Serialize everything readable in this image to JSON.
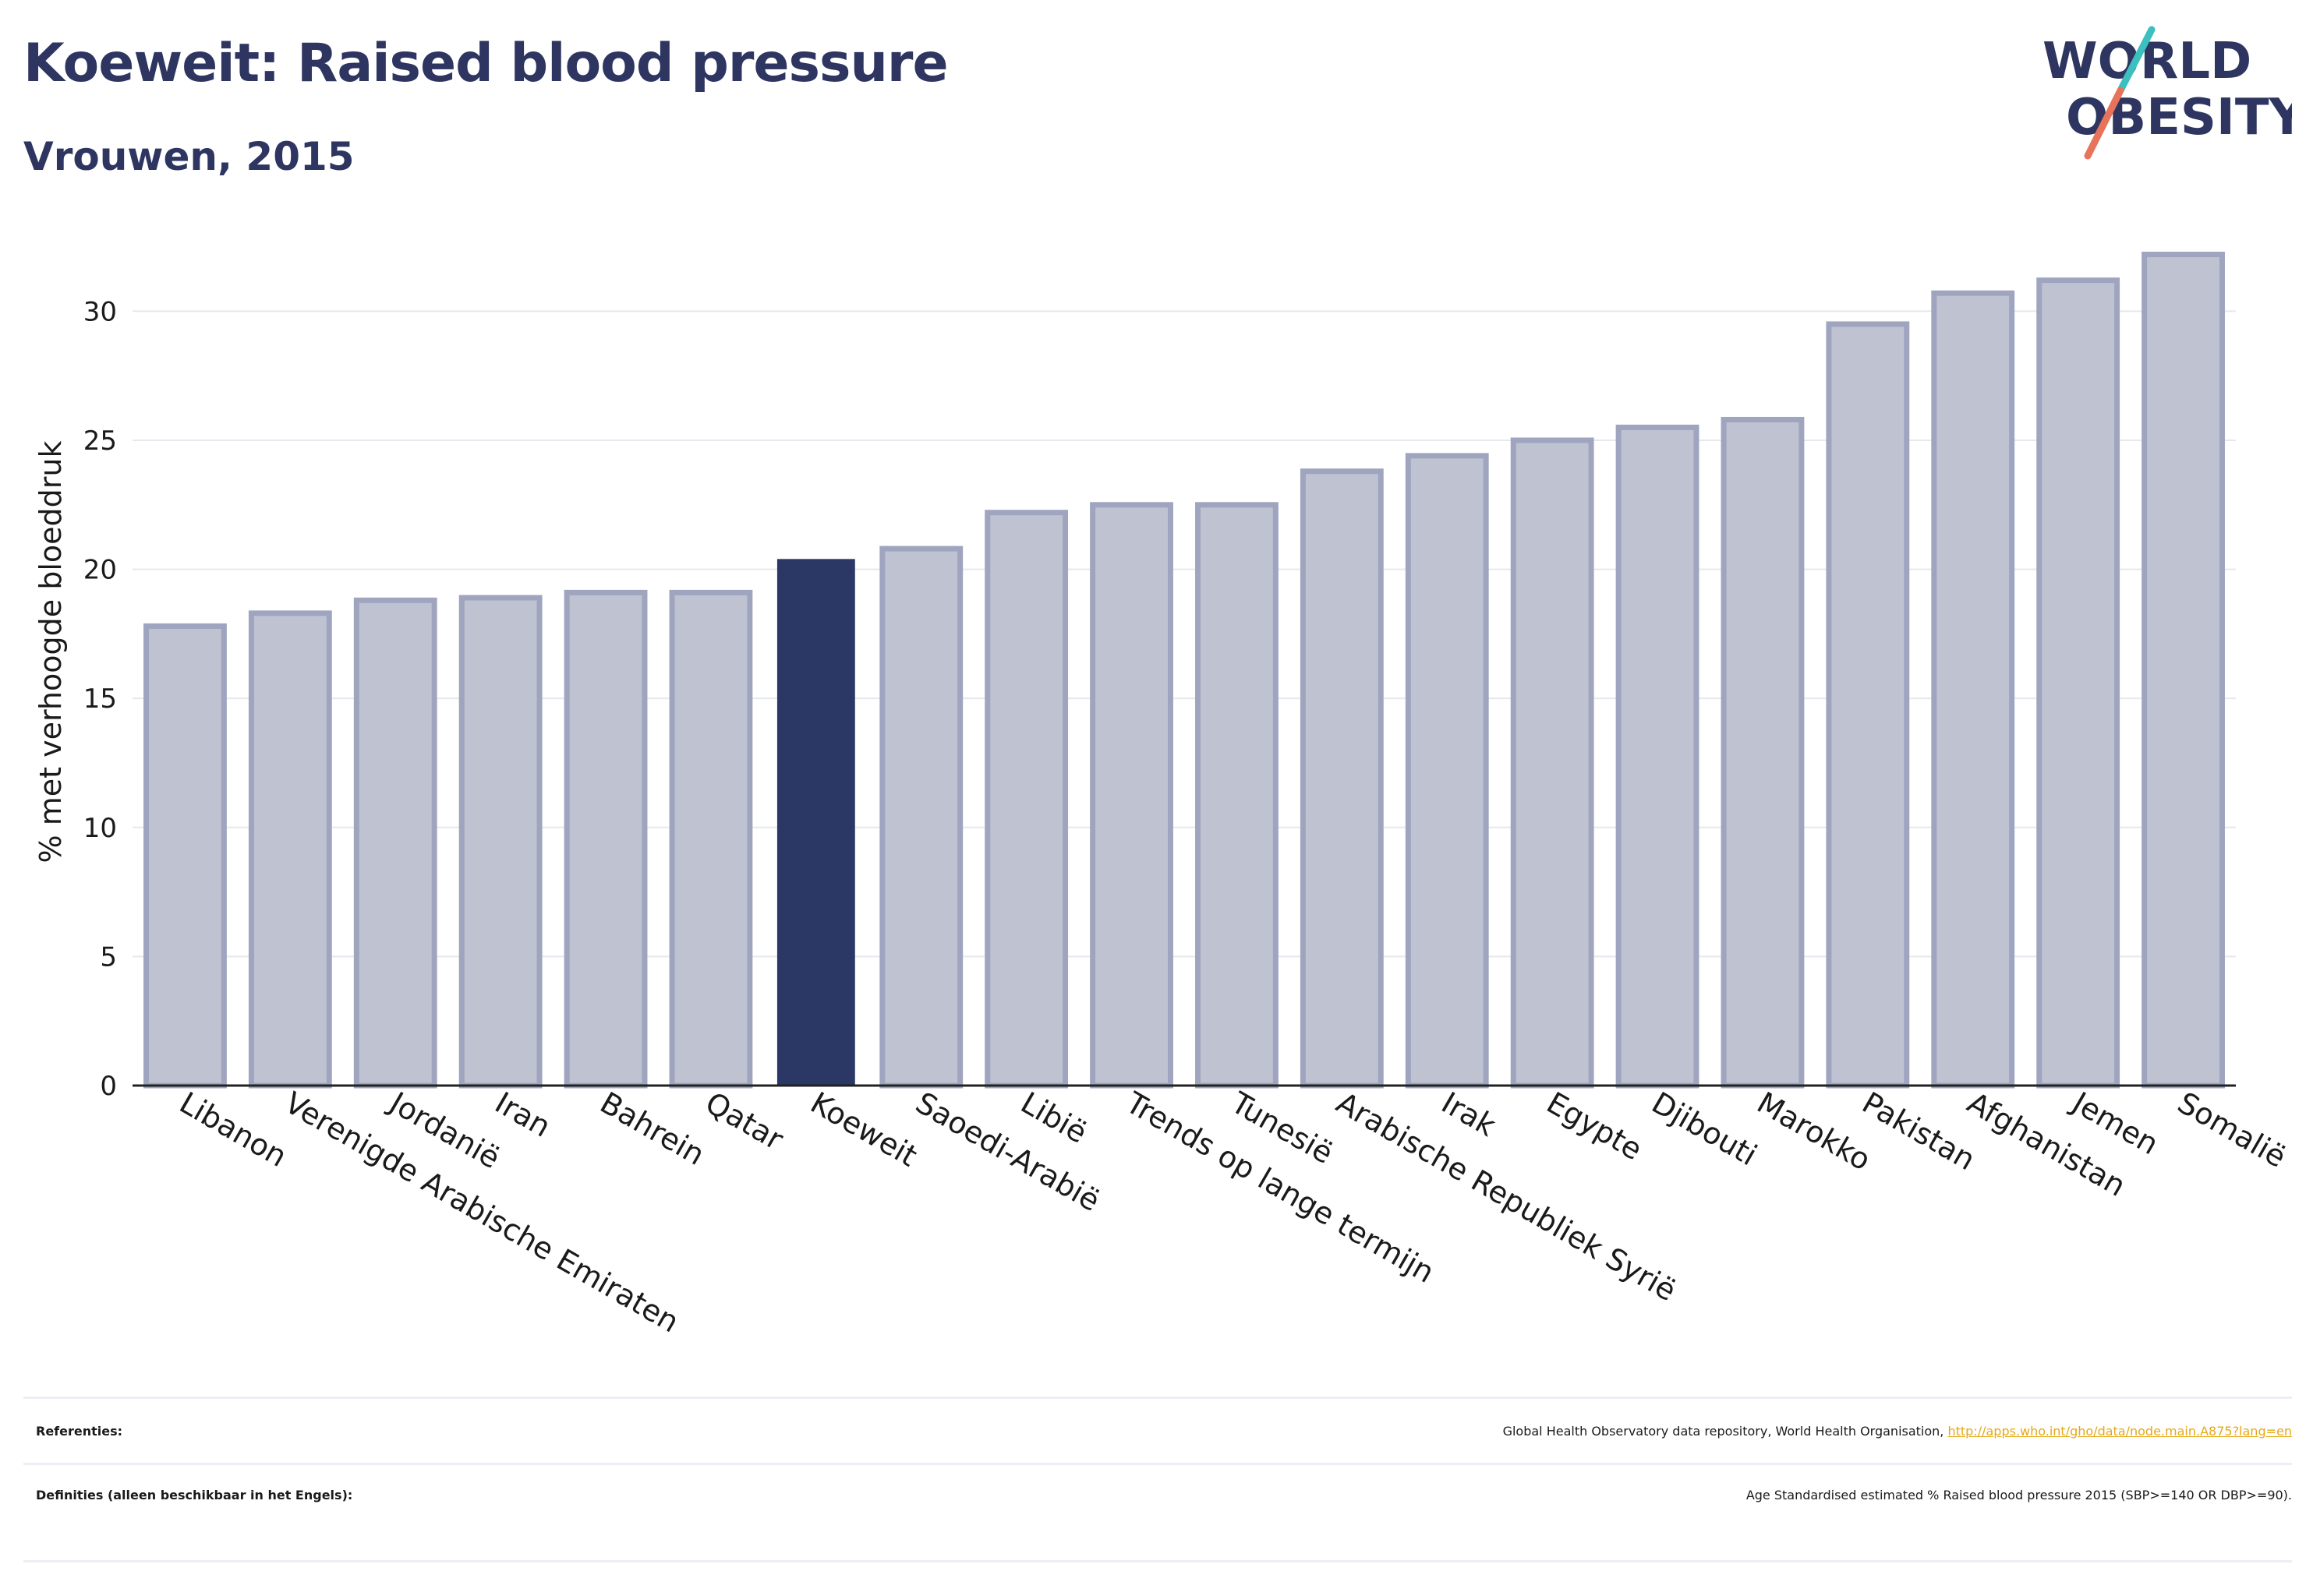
{
  "header": {
    "title": "Koeweit: Raised blood pressure",
    "subtitle": "Vrouwen, 2015"
  },
  "logo": {
    "line1": "WORLD",
    "line2": "OBESITY",
    "colors": {
      "text": "#2d3560",
      "slash_top": "#3bbfbf",
      "slash_bottom": "#e8735a"
    }
  },
  "chart_data": {
    "type": "bar",
    "ylabel": "% met verhoogde bloeddruk",
    "xlabel": "",
    "ylim": [
      0,
      33
    ],
    "yticks": [
      0,
      5,
      10,
      15,
      20,
      25,
      30
    ],
    "grid": true,
    "highlight": "Koeweit",
    "colors": {
      "bar": "#bfc2d0",
      "bar_border": "#9fa5bf",
      "highlight": "#2b3764"
    },
    "categories": [
      "Libanon",
      "Verenigde Arabische Emiraten",
      "Jordanië",
      "Iran",
      "Bahrein",
      "Qatar",
      "Koeweit",
      "Saoedi-Arabië",
      "Libië",
      "Trends op lange termijn",
      "Tunesië",
      "Arabische Republiek Syrië",
      "Irak",
      "Egypte",
      "Djibouti",
      "Marokko",
      "Pakistan",
      "Afghanistan",
      "Jemen",
      "Somalië"
    ],
    "values": [
      17.8,
      18.3,
      18.8,
      18.9,
      19.1,
      19.1,
      20.4,
      20.8,
      22.2,
      22.5,
      22.5,
      23.8,
      24.4,
      25.0,
      25.5,
      25.8,
      29.5,
      30.7,
      31.2,
      32.2
    ]
  },
  "footer": {
    "references_label": "Referenties:",
    "references_text": "Global Health Observatory data repository, World Health Organisation, ",
    "references_link": "http://apps.who.int/gho/data/node.main.A875?lang=en",
    "definitions_label": "Definities (alleen beschikbaar in het Engels):",
    "definitions_text": "Age Standardised estimated % Raised blood pressure 2015 (SBP>=140 OR DBP>=90)."
  }
}
